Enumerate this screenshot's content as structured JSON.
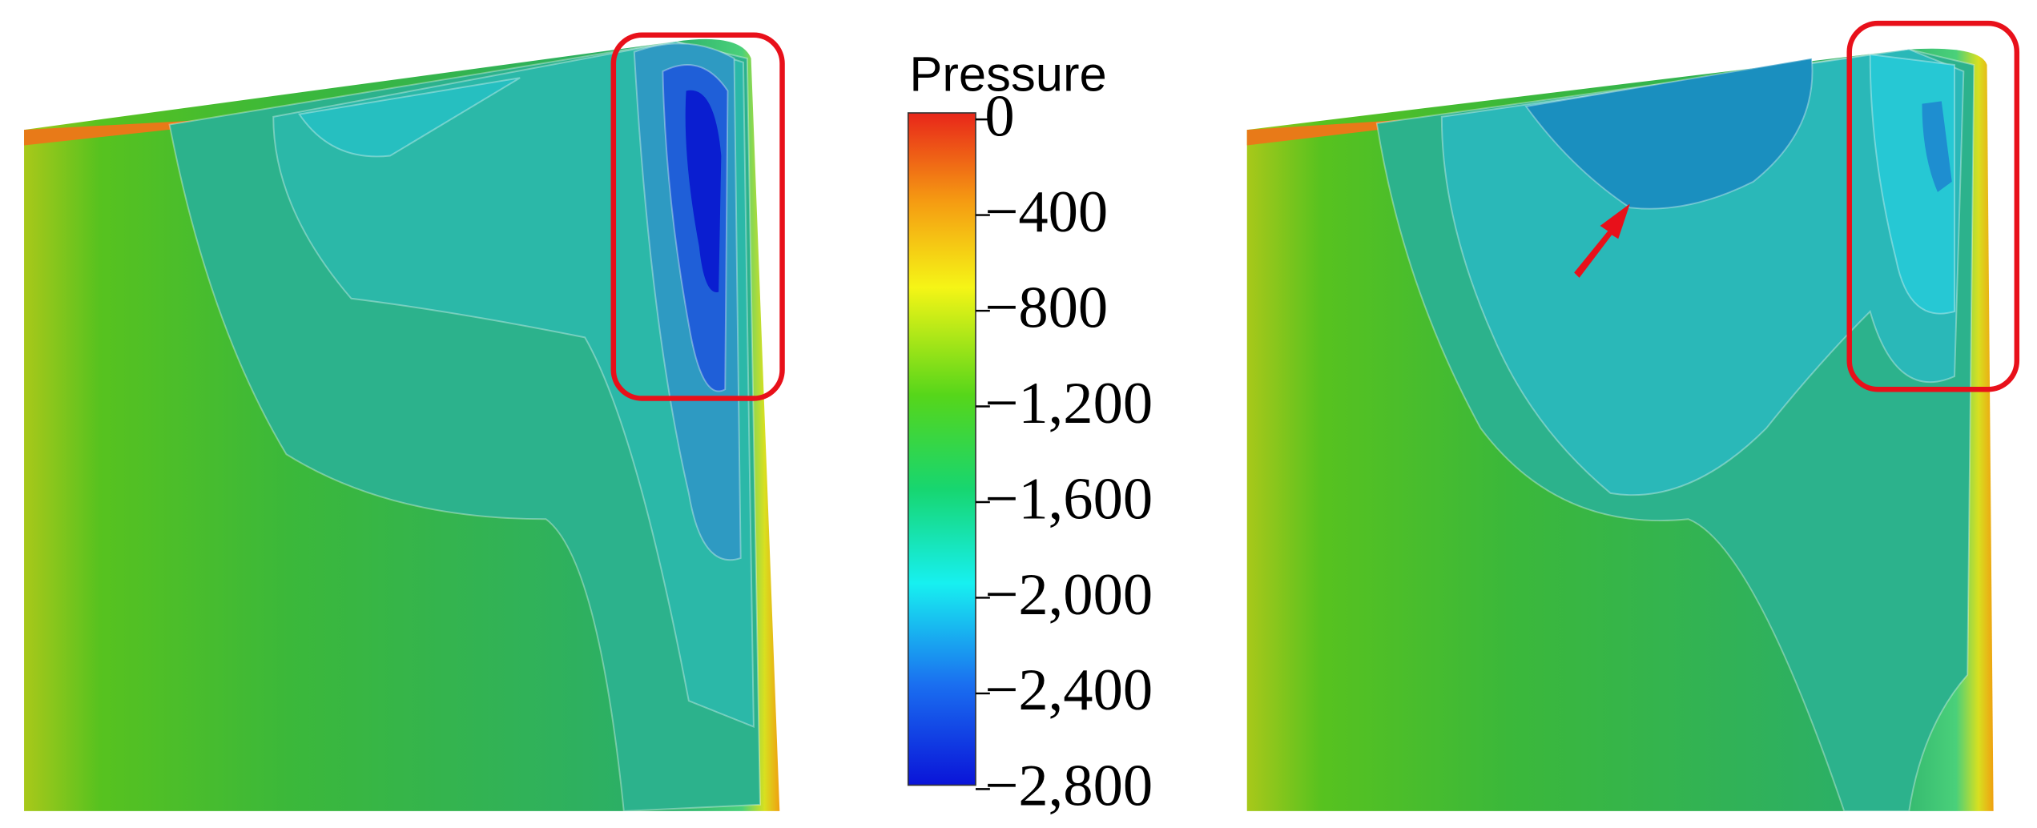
{
  "colorbar": {
    "title": "Pressure",
    "labels": [
      "0",
      "−400",
      "−800",
      "−1,200",
      "−1,600",
      "−2,000",
      "−2,400",
      "−2,800"
    ]
  }
}
